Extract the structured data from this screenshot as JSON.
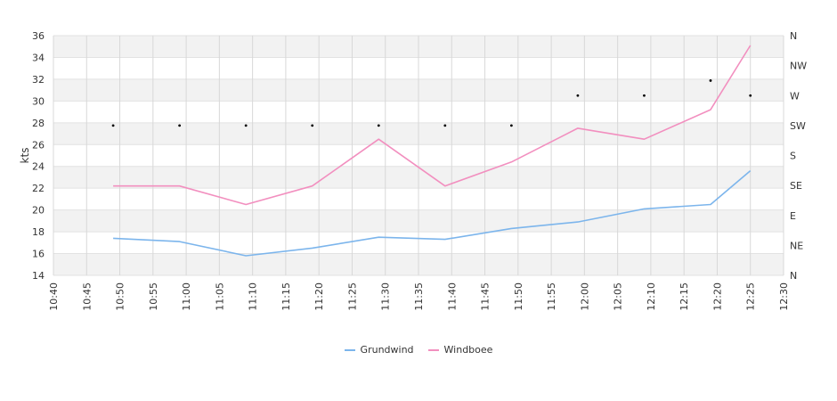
{
  "chart_data": {
    "type": "line",
    "ylabel": "kts",
    "ylim": [
      14,
      36
    ],
    "yticks": [
      14,
      16,
      18,
      20,
      22,
      24,
      26,
      28,
      30,
      32,
      34,
      36
    ],
    "xlim": [
      "10:40",
      "12:30"
    ],
    "xticks": [
      "10:40",
      "10:45",
      "10:50",
      "10:55",
      "11:00",
      "11:05",
      "11:10",
      "11:15",
      "11:20",
      "11:25",
      "11:30",
      "11:35",
      "11:40",
      "11:45",
      "11:50",
      "11:55",
      "12:00",
      "12:05",
      "12:10",
      "12:15",
      "12:20",
      "12:25",
      "12:30"
    ],
    "y2ticks": [
      "N",
      "NE",
      "E",
      "SE",
      "S",
      "SW",
      "W",
      "NW",
      "N"
    ],
    "grid": true,
    "legend_position": "bottom",
    "series": [
      {
        "name": "Grundwind",
        "color": "#7cb5ec",
        "x": [
          "10:49",
          "10:59",
          "11:09",
          "11:19",
          "11:29",
          "11:39",
          "11:49",
          "11:59",
          "12:09",
          "12:19",
          "12:25"
        ],
        "values": [
          17.4,
          17.1,
          15.8,
          16.5,
          17.5,
          17.3,
          18.3,
          18.9,
          20.1,
          20.5,
          23.6
        ]
      },
      {
        "name": "Windboee",
        "color": "#f28fbf",
        "x": [
          "10:49",
          "10:59",
          "11:09",
          "11:19",
          "11:29",
          "11:39",
          "11:49",
          "11:59",
          "12:09",
          "12:19",
          "12:25"
        ],
        "values": [
          22.2,
          22.2,
          20.5,
          22.2,
          26.5,
          22.2,
          24.4,
          27.5,
          26.5,
          29.2,
          35.1
        ]
      }
    ],
    "direction": {
      "color": "#000000",
      "x": [
        "10:49",
        "10:59",
        "11:09",
        "11:19",
        "11:29",
        "11:39",
        "11:49",
        "11:59",
        "12:09",
        "12:19",
        "12:25"
      ],
      "values": [
        "SW",
        "SW",
        "SW",
        "SW",
        "SW",
        "SW",
        "SW",
        "W",
        "W",
        "WNW",
        "W"
      ]
    }
  }
}
